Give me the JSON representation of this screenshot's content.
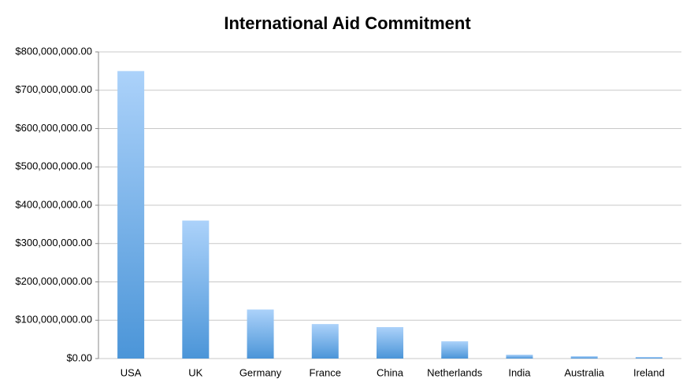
{
  "chart_data": {
    "type": "bar",
    "title": "International Aid Commitment",
    "categories": [
      "USA",
      "UK",
      "Germany",
      "France",
      "China",
      "Netherlands",
      "India",
      "Australia",
      "Ireland"
    ],
    "values": [
      750000000,
      360000000,
      128000000,
      90000000,
      82000000,
      45000000,
      10000000,
      6000000,
      4000000
    ],
    "gradient": {
      "top": "#acd2fa",
      "bottom": "#4b95d8"
    },
    "ylim": [
      0,
      800000000
    ],
    "yticks": [
      {
        "value": 0,
        "label": "$0.00"
      },
      {
        "value": 100000000,
        "label": "$100,000,000.00"
      },
      {
        "value": 200000000,
        "label": "$200,000,000.00"
      },
      {
        "value": 300000000,
        "label": "$300,000,000.00"
      },
      {
        "value": 400000000,
        "label": "$400,000,000.00"
      },
      {
        "value": 500000000,
        "label": "$500,000,000.00"
      },
      {
        "value": 600000000,
        "label": "$600,000,000.00"
      },
      {
        "value": 700000000,
        "label": "$700,000,000.00"
      },
      {
        "value": 800000000,
        "label": "$800,000,000.00"
      }
    ],
    "grid": true
  }
}
